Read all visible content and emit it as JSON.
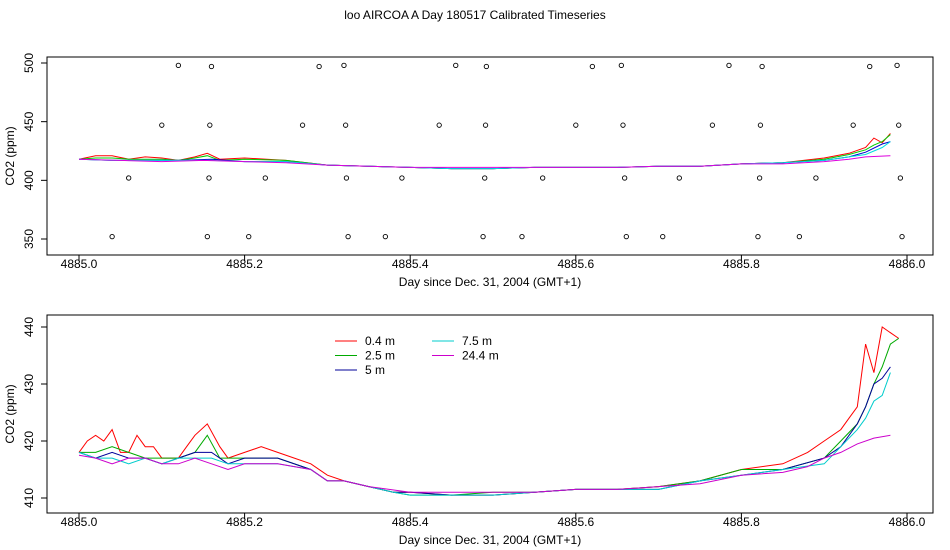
{
  "title": "loo AIRCOA A  Day 180517  Calibrated Timeseries",
  "chart_data": [
    {
      "type": "scatter",
      "panel": "top",
      "xlabel": "Day since Dec. 31, 2004 (GMT+1)",
      "ylabel": "CO2 (ppm)",
      "xlim": [
        4885.0,
        4886.0
      ],
      "ylim": [
        350,
        500
      ],
      "xticks": [
        "4885.0",
        "4885.2",
        "4885.4",
        "4885.6",
        "4885.8",
        "4886.0"
      ],
      "xtick_values": [
        4885.0,
        4885.2,
        4885.4,
        4885.6,
        4885.8,
        4886.0
      ],
      "yticks": [
        "350",
        "400",
        "450",
        "500"
      ],
      "ytick_values": [
        350,
        400,
        450,
        500
      ],
      "grid": false,
      "points": [
        {
          "x": 4885.04,
          "y": 352
        },
        {
          "x": 4885.06,
          "y": 402
        },
        {
          "x": 4885.1,
          "y": 447
        },
        {
          "x": 4885.12,
          "y": 498
        },
        {
          "x": 4885.155,
          "y": 352
        },
        {
          "x": 4885.157,
          "y": 402
        },
        {
          "x": 4885.158,
          "y": 447
        },
        {
          "x": 4885.16,
          "y": 497
        },
        {
          "x": 4885.205,
          "y": 352
        },
        {
          "x": 4885.225,
          "y": 402
        },
        {
          "x": 4885.27,
          "y": 447
        },
        {
          "x": 4885.29,
          "y": 497
        },
        {
          "x": 4885.32,
          "y": 498
        },
        {
          "x": 4885.322,
          "y": 447
        },
        {
          "x": 4885.323,
          "y": 402
        },
        {
          "x": 4885.325,
          "y": 352
        },
        {
          "x": 4885.37,
          "y": 352
        },
        {
          "x": 4885.39,
          "y": 402
        },
        {
          "x": 4885.435,
          "y": 447
        },
        {
          "x": 4885.455,
          "y": 498
        },
        {
          "x": 4885.488,
          "y": 352
        },
        {
          "x": 4885.49,
          "y": 402
        },
        {
          "x": 4885.491,
          "y": 447
        },
        {
          "x": 4885.492,
          "y": 497
        },
        {
          "x": 4885.535,
          "y": 352
        },
        {
          "x": 4885.56,
          "y": 402
        },
        {
          "x": 4885.6,
          "y": 447
        },
        {
          "x": 4885.62,
          "y": 497
        },
        {
          "x": 4885.655,
          "y": 498
        },
        {
          "x": 4885.657,
          "y": 447
        },
        {
          "x": 4885.659,
          "y": 402
        },
        {
          "x": 4885.661,
          "y": 352
        },
        {
          "x": 4885.705,
          "y": 352
        },
        {
          "x": 4885.725,
          "y": 402
        },
        {
          "x": 4885.765,
          "y": 447
        },
        {
          "x": 4885.785,
          "y": 498
        },
        {
          "x": 4885.82,
          "y": 352
        },
        {
          "x": 4885.822,
          "y": 402
        },
        {
          "x": 4885.823,
          "y": 447
        },
        {
          "x": 4885.825,
          "y": 497
        },
        {
          "x": 4885.87,
          "y": 352
        },
        {
          "x": 4885.89,
          "y": 402
        },
        {
          "x": 4885.935,
          "y": 447
        },
        {
          "x": 4885.955,
          "y": 497
        },
        {
          "x": 4885.988,
          "y": 498
        },
        {
          "x": 4885.99,
          "y": 447
        },
        {
          "x": 4885.992,
          "y": 402
        },
        {
          "x": 4885.994,
          "y": 352
        }
      ],
      "series": [
        {
          "color": "#ff0000",
          "x": [
            4885.0,
            4885.02,
            4885.04,
            4885.06,
            4885.08,
            4885.1,
            4885.12,
            4885.14,
            4885.155,
            4885.17,
            4885.2,
            4885.25,
            4885.3,
            4885.35,
            4885.4,
            4885.45,
            4885.5,
            4885.55,
            4885.6,
            4885.65,
            4885.7,
            4885.75,
            4885.8,
            4885.85,
            4885.9,
            4885.93,
            4885.95,
            4885.96,
            4885.97,
            4885.98
          ],
          "y": [
            418,
            421,
            421,
            418,
            420,
            419,
            417,
            420,
            423,
            418,
            419,
            417,
            413,
            412,
            411,
            410,
            410,
            411,
            411,
            411,
            412,
            412,
            414,
            415,
            419,
            423,
            428,
            436,
            432,
            440
          ]
        },
        {
          "color": "#00cc00",
          "x": [
            4885.0,
            4885.02,
            4885.04,
            4885.06,
            4885.08,
            4885.1,
            4885.12,
            4885.14,
            4885.155,
            4885.17,
            4885.2,
            4885.25,
            4885.3,
            4885.35,
            4885.4,
            4885.45,
            4885.5,
            4885.55,
            4885.6,
            4885.65,
            4885.7,
            4885.75,
            4885.8,
            4885.85,
            4885.9,
            4885.93,
            4885.95,
            4885.96,
            4885.97,
            4885.98
          ],
          "y": [
            418,
            419,
            419,
            418,
            418,
            418,
            417,
            419,
            421,
            417,
            418,
            417,
            413,
            412,
            411,
            410,
            410,
            411,
            411,
            411,
            412,
            412,
            414,
            415,
            418,
            422,
            426,
            430,
            433,
            439
          ]
        },
        {
          "color": "#0000cc",
          "x": [
            4885.0,
            4885.04,
            4885.08,
            4885.12,
            4885.16,
            4885.2,
            4885.25,
            4885.3,
            4885.35,
            4885.4,
            4885.45,
            4885.5,
            4885.55,
            4885.6,
            4885.65,
            4885.7,
            4885.75,
            4885.8,
            4885.85,
            4885.9,
            4885.93,
            4885.95,
            4885.97,
            4885.98
          ],
          "y": [
            418,
            417,
            417,
            417,
            418,
            416,
            416,
            413,
            412,
            411,
            410,
            410,
            411,
            411,
            411,
            412,
            412,
            414,
            415,
            417,
            420,
            424,
            431,
            433
          ]
        },
        {
          "color": "#00dddd",
          "x": [
            4885.0,
            4885.04,
            4885.08,
            4885.12,
            4885.16,
            4885.2,
            4885.25,
            4885.3,
            4885.35,
            4885.4,
            4885.45,
            4885.5,
            4885.55,
            4885.6,
            4885.65,
            4885.7,
            4885.75,
            4885.8,
            4885.85,
            4885.9,
            4885.93,
            4885.95,
            4885.97,
            4885.98
          ],
          "y": [
            418,
            417,
            417,
            417,
            417,
            416,
            416,
            413,
            412,
            411,
            410,
            410,
            411,
            411,
            411,
            412,
            412,
            414,
            415,
            417,
            420,
            422,
            428,
            433
          ]
        },
        {
          "color": "#dd00dd",
          "x": [
            4885.0,
            4885.05,
            4885.1,
            4885.15,
            4885.2,
            4885.25,
            4885.3,
            4885.35,
            4885.4,
            4885.45,
            4885.5,
            4885.55,
            4885.6,
            4885.65,
            4885.7,
            4885.75,
            4885.8,
            4885.85,
            4885.9,
            4885.93,
            4885.95,
            4885.98
          ],
          "y": [
            418,
            417,
            416,
            417,
            416,
            415,
            413,
            412,
            411,
            411,
            411,
            411,
            411,
            411,
            412,
            412,
            414,
            414,
            416,
            418,
            420,
            421
          ]
        }
      ]
    },
    {
      "type": "line",
      "panel": "bottom",
      "xlabel": "Day since Dec. 31, 2004 (GMT+1)",
      "ylabel": "CO2 (ppm)",
      "xlim": [
        4885.0,
        4886.0
      ],
      "ylim": [
        409.5,
        440.5
      ],
      "xticks": [
        "4885.0",
        "4885.2",
        "4885.4",
        "4885.6",
        "4885.8",
        "4886.0"
      ],
      "xtick_values": [
        4885.0,
        4885.2,
        4885.4,
        4885.6,
        4885.8,
        4886.0
      ],
      "yticks": [
        "410",
        "420",
        "430",
        "440"
      ],
      "ytick_values": [
        410,
        420,
        430,
        440
      ],
      "grid": false,
      "legend_position": "top-left",
      "legend": [
        "0.4 m",
        "2.5 m",
        "5 m",
        "7.5 m",
        "24.4 m"
      ],
      "series": [
        {
          "name": "0.4 m",
          "color": "#ff0000",
          "x": [
            4885.0,
            4885.01,
            4885.02,
            4885.03,
            4885.04,
            4885.05,
            4885.06,
            4885.07,
            4885.08,
            4885.09,
            4885.1,
            4885.11,
            4885.12,
            4885.13,
            4885.14,
            4885.155,
            4885.17,
            4885.18,
            4885.2,
            4885.22,
            4885.24,
            4885.26,
            4885.28,
            4885.3,
            4885.32,
            4885.35,
            4885.38,
            4885.4,
            4885.45,
            4885.5,
            4885.55,
            4885.6,
            4885.65,
            4885.7,
            4885.75,
            4885.8,
            4885.85,
            4885.88,
            4885.9,
            4885.92,
            4885.93,
            4885.94,
            4885.95,
            4885.96,
            4885.97,
            4885.98,
            4885.99
          ],
          "y": [
            418,
            420,
            421,
            420,
            422,
            418,
            418,
            421,
            419,
            419,
            417,
            417,
            417,
            419,
            421,
            423,
            419,
            417,
            418,
            419,
            418,
            417,
            416,
            414,
            413,
            412,
            411,
            411,
            410.5,
            410.5,
            411,
            411.5,
            411.5,
            412,
            413,
            415,
            416,
            418,
            420,
            422,
            424,
            426,
            437,
            432,
            440,
            439,
            438
          ]
        },
        {
          "name": "2.5 m",
          "color": "#00aa00",
          "x": [
            4885.0,
            4885.02,
            4885.04,
            4885.06,
            4885.08,
            4885.1,
            4885.12,
            4885.14,
            4885.155,
            4885.17,
            4885.2,
            4885.24,
            4885.28,
            4885.3,
            4885.32,
            4885.35,
            4885.38,
            4885.4,
            4885.45,
            4885.5,
            4885.55,
            4885.6,
            4885.65,
            4885.7,
            4885.75,
            4885.8,
            4885.85,
            4885.9,
            4885.92,
            4885.94,
            4885.95,
            4885.96,
            4885.97,
            4885.98,
            4885.99
          ],
          "y": [
            418,
            418,
            419,
            418,
            417,
            417,
            417,
            418,
            421,
            417,
            417,
            417,
            415,
            413,
            413,
            412,
            411,
            410.5,
            410.5,
            411,
            411,
            411.5,
            411.5,
            412,
            413,
            415,
            415,
            417,
            420,
            423,
            426,
            430,
            433,
            437,
            438
          ]
        },
        {
          "name": "5 m",
          "color": "#000099",
          "x": [
            4885.0,
            4885.02,
            4885.04,
            4885.06,
            4885.08,
            4885.1,
            4885.12,
            4885.14,
            4885.16,
            4885.18,
            4885.2,
            4885.24,
            4885.28,
            4885.3,
            4885.32,
            4885.35,
            4885.38,
            4885.4,
            4885.45,
            4885.5,
            4885.55,
            4885.6,
            4885.65,
            4885.7,
            4885.75,
            4885.8,
            4885.85,
            4885.9,
            4885.92,
            4885.94,
            4885.95,
            4885.96,
            4885.97,
            4885.98
          ],
          "y": [
            418,
            417,
            418,
            417,
            417,
            416,
            417,
            418,
            418,
            416,
            417,
            417,
            415,
            413,
            413,
            412,
            411,
            411,
            410.5,
            410.5,
            411,
            411.5,
            411.5,
            411.5,
            413,
            414,
            415,
            417,
            419,
            423,
            426,
            430,
            431,
            433
          ]
        },
        {
          "name": "7.5 m",
          "color": "#00cccc",
          "x": [
            4885.0,
            4885.02,
            4885.04,
            4885.06,
            4885.08,
            4885.1,
            4885.12,
            4885.14,
            4885.16,
            4885.18,
            4885.2,
            4885.24,
            4885.28,
            4885.3,
            4885.32,
            4885.35,
            4885.38,
            4885.4,
            4885.45,
            4885.5,
            4885.55,
            4885.6,
            4885.65,
            4885.7,
            4885.75,
            4885.8,
            4885.85,
            4885.9,
            4885.92,
            4885.94,
            4885.95,
            4885.96,
            4885.97,
            4885.98
          ],
          "y": [
            418,
            417,
            417,
            416,
            417,
            416,
            417,
            417,
            417,
            416,
            416,
            416,
            415,
            413,
            413,
            412,
            411,
            410.5,
            410.5,
            410.5,
            411,
            411.5,
            411.5,
            411.5,
            413,
            414,
            415,
            416,
            419,
            422,
            424,
            427,
            428,
            432
          ]
        },
        {
          "name": "24.4 m",
          "color": "#cc00cc",
          "x": [
            4885.0,
            4885.02,
            4885.04,
            4885.06,
            4885.08,
            4885.1,
            4885.12,
            4885.14,
            4885.16,
            4885.18,
            4885.2,
            4885.24,
            4885.28,
            4885.3,
            4885.32,
            4885.35,
            4885.4,
            4885.45,
            4885.5,
            4885.55,
            4885.6,
            4885.65,
            4885.7,
            4885.75,
            4885.8,
            4885.85,
            4885.88,
            4885.9,
            4885.92,
            4885.94,
            4885.96,
            4885.98
          ],
          "y": [
            417.5,
            417,
            416,
            417,
            417,
            416,
            416,
            417,
            416,
            415,
            416,
            416,
            415,
            413,
            413,
            412,
            411,
            411,
            411,
            411,
            411.5,
            411.5,
            412,
            412.5,
            414,
            414.5,
            415.5,
            417,
            418,
            419.5,
            420.5,
            421
          ]
        }
      ]
    }
  ]
}
